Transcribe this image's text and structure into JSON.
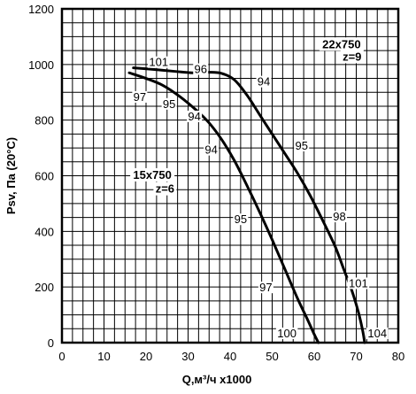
{
  "chart_data": {
    "type": "line",
    "xlabel": "Q,м³/ч x1000",
    "ylabel": "Psv, Па (20°C)",
    "xlim": [
      0,
      80
    ],
    "ylim": [
      0,
      1200
    ],
    "xticks": [
      0,
      10,
      20,
      30,
      40,
      50,
      60,
      70,
      80
    ],
    "yticks": [
      0,
      200,
      400,
      600,
      800,
      1000,
      1200
    ],
    "grid": true,
    "series": [
      {
        "name": "22x750 z=9",
        "x": [
          17,
          22,
          27,
          31,
          35,
          38,
          41,
          44,
          47,
          50,
          53,
          56,
          59,
          62,
          65,
          67,
          69,
          70.5,
          71.5,
          72
        ],
        "y": [
          988,
          982,
          975,
          970,
          972,
          968,
          945,
          890,
          820,
          750,
          680,
          610,
          530,
          440,
          345,
          265,
          185,
          110,
          45,
          0
        ],
        "labels": [
          {
            "text": "101",
            "x": 23,
            "y": 1010
          },
          {
            "text": "96",
            "x": 33,
            "y": 985
          },
          {
            "text": "94",
            "x": 48,
            "y": 940
          },
          {
            "text": "95",
            "x": 57,
            "y": 710
          },
          {
            "text": "98",
            "x": 66,
            "y": 455
          },
          {
            "text": "101",
            "x": 70.5,
            "y": 215
          },
          {
            "text": "104",
            "x": 75,
            "y": 35
          }
        ]
      },
      {
        "name": "15x750 z=6",
        "x": [
          16,
          20,
          24,
          28,
          32,
          35,
          38,
          41,
          44,
          47,
          50,
          53,
          56,
          58.5,
          60,
          61
        ],
        "y": [
          970,
          950,
          925,
          885,
          835,
          790,
          730,
          655,
          565,
          470,
          370,
          265,
          160,
          80,
          30,
          0
        ],
        "labels": [
          {
            "text": "97",
            "x": 18.5,
            "y": 885
          },
          {
            "text": "95",
            "x": 25.5,
            "y": 860
          },
          {
            "text": "94",
            "x": 31.5,
            "y": 815
          },
          {
            "text": "94",
            "x": 35.5,
            "y": 695
          },
          {
            "text": "95",
            "x": 42.5,
            "y": 445
          },
          {
            "text": "97",
            "x": 48.5,
            "y": 200
          },
          {
            "text": "100",
            "x": 53.5,
            "y": 35
          }
        ]
      }
    ],
    "annotations": [
      {
        "text": "22x750",
        "x": 66.5,
        "y": 1075
      },
      {
        "text": "z=9",
        "x": 69,
        "y": 1030
      },
      {
        "text": "15x750",
        "x": 21.5,
        "y": 605
      },
      {
        "text": "z=6",
        "x": 24.5,
        "y": 555
      }
    ]
  }
}
